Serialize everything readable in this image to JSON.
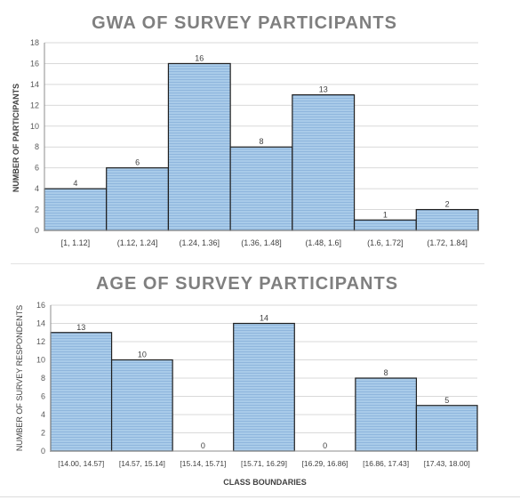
{
  "chart_data": [
    {
      "type": "bar",
      "title": "GWA OF SURVEY PARTICIPANTS",
      "ylabel": "NUMBER OF PARTICIPANTS",
      "xlabel": "",
      "ylim": [
        0,
        18
      ],
      "ytick_step": 2,
      "grid": true,
      "legend": "none",
      "bar_color": "#9dc3e6",
      "categories": [
        "[1, 1.12]",
        "(1.12, 1.24]",
        "(1.24, 1.36]",
        "(1.36, 1.48]",
        "(1.48, 1.6]",
        "(1.6, 1.72]",
        "(1.72, 1.84]"
      ],
      "values": [
        4,
        6,
        16,
        8,
        13,
        1,
        2
      ]
    },
    {
      "type": "bar",
      "title": "AGE OF SURVEY PARTICIPANTS",
      "ylabel": "NUMBER OF SURVEY RESPONDENTS",
      "xlabel": "CLASS BOUNDARIES",
      "ylim": [
        0,
        16
      ],
      "ytick_step": 2,
      "grid": true,
      "legend": "none",
      "bar_color": "#9dc3e6",
      "categories": [
        "[14.00, 14.57]",
        "[14.57, 15.14]",
        "[15.14, 15.71]",
        "[15.71, 16.29]",
        "[16.29, 16.86]",
        "[16.86, 17.43]",
        "[17.43, 18.00]"
      ],
      "values": [
        13,
        10,
        0,
        14,
        0,
        8,
        5
      ]
    }
  ]
}
